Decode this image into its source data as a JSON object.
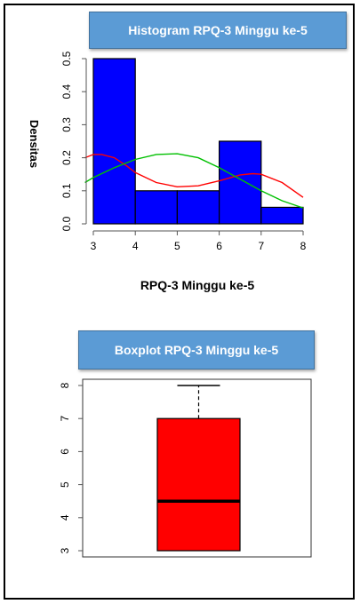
{
  "chart_data": [
    {
      "type": "bar",
      "title": "Histogram RPQ-3 Minggu ke-5",
      "xlabel": "RPQ-3 Minggu ke-5",
      "ylabel": "Densitas",
      "bins": [
        [
          3,
          4
        ],
        [
          4,
          5
        ],
        [
          5,
          6
        ],
        [
          6,
          7
        ],
        [
          7,
          8
        ]
      ],
      "values": [
        0.5,
        0.1,
        0.1,
        0.25,
        0.05
      ],
      "xticks": [
        "3",
        "4",
        "5",
        "6",
        "7",
        "8"
      ],
      "yticks": [
        "0.0",
        "0.1",
        "0.2",
        "0.3",
        "0.4",
        "0.5"
      ],
      "xlim": [
        3,
        8
      ],
      "ylim": [
        0,
        0.5
      ],
      "bar_color": "#0000ff",
      "series": [
        {
          "color": "#ff0000",
          "x": [
            2.8,
            3.0,
            3.2,
            3.5,
            3.8,
            4.0,
            4.5,
            5.0,
            5.5,
            6.0,
            6.5,
            6.8,
            7.0,
            7.5,
            8.0
          ],
          "y": [
            0.2,
            0.21,
            0.21,
            0.2,
            0.175,
            0.155,
            0.125,
            0.112,
            0.115,
            0.13,
            0.148,
            0.152,
            0.15,
            0.125,
            0.08
          ]
        },
        {
          "color": "#00c000",
          "x": [
            2.8,
            3.0,
            3.5,
            4.0,
            4.5,
            5.0,
            5.5,
            6.0,
            6.5,
            7.0,
            7.5,
            8.0
          ],
          "y": [
            0.125,
            0.14,
            0.17,
            0.195,
            0.21,
            0.212,
            0.2,
            0.17,
            0.135,
            0.1,
            0.07,
            0.048
          ]
        }
      ]
    },
    {
      "type": "box",
      "title": "Boxplot RPQ-3 Minggu ke-5",
      "min": 3,
      "q1": 3,
      "median": 4.5,
      "q3": 7,
      "max": 8,
      "yticks": [
        "3",
        "4",
        "5",
        "6",
        "7",
        "8"
      ],
      "ylim": [
        3,
        8
      ],
      "box_color": "#ff0000"
    }
  ]
}
